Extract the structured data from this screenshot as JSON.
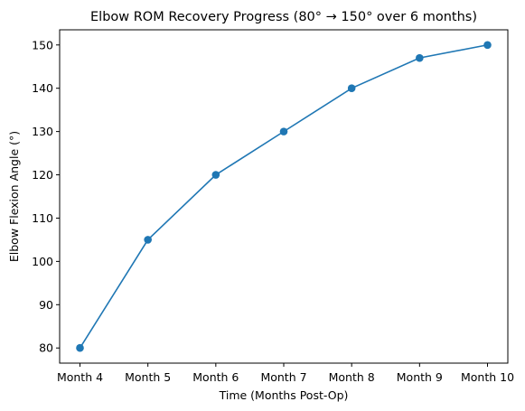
{
  "chart_data": {
    "type": "line",
    "title": "Elbow ROM Recovery Progress (80° → 150° over 6 months)",
    "xlabel": "Time (Months Post-Op)",
    "ylabel": "Elbow Flexion Angle (°)",
    "categories": [
      "Month 4",
      "Month 5",
      "Month 6",
      "Month 7",
      "Month 8",
      "Month 9",
      "Month 10"
    ],
    "series": [
      {
        "values": [
          80,
          105,
          120,
          130,
          140,
          147,
          150
        ],
        "color": "#1f77b4",
        "marker": "circle"
      }
    ],
    "ylim": [
      76.5,
      153.5
    ],
    "yticks": [
      80,
      90,
      100,
      110,
      120,
      130,
      140,
      150
    ],
    "grid": false,
    "legend": "none"
  }
}
